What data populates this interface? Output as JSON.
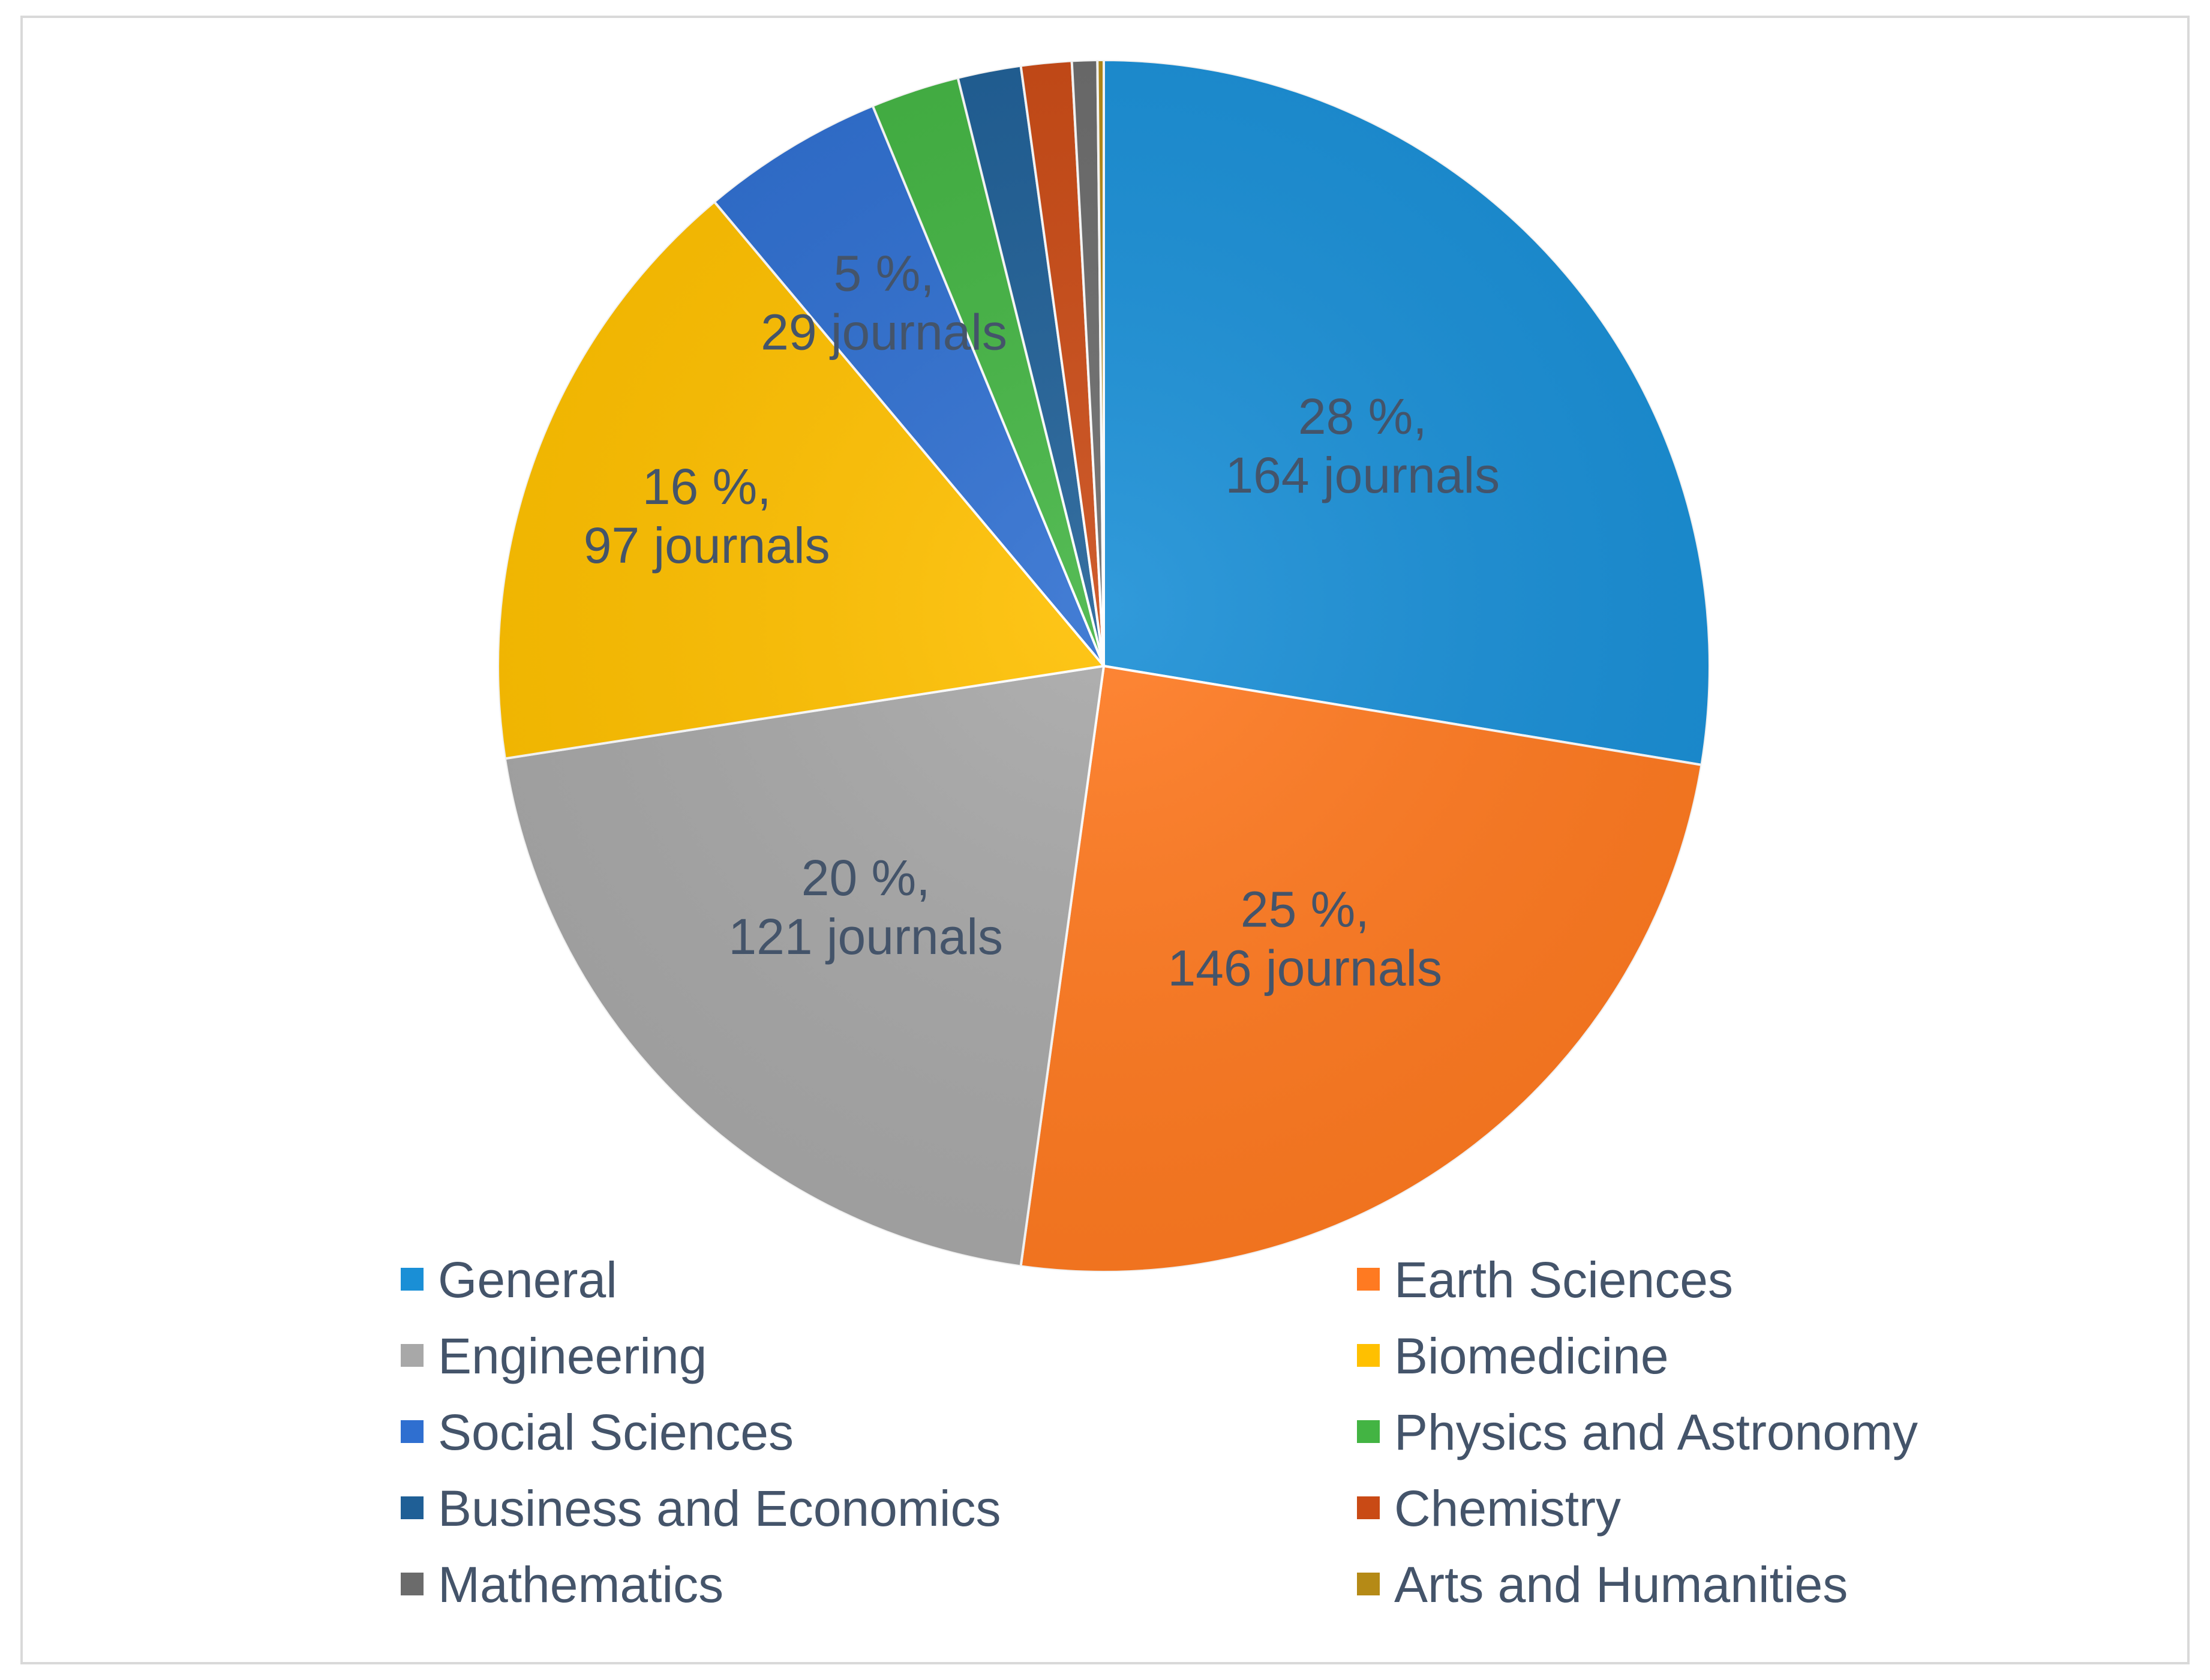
{
  "chart_data": {
    "type": "pie",
    "title": "",
    "legend_position": "bottom",
    "slices": [
      {
        "category": "General",
        "percent_label": "28 %,",
        "count_label": "164 journals",
        "value": 164,
        "color": "#1a8fd6",
        "show_label": true
      },
      {
        "category": "Earth Sciences",
        "percent_label": "25 %,",
        "count_label": "146 journals",
        "value": 146,
        "color": "#ff7a21",
        "show_label": true
      },
      {
        "category": "Engineering",
        "percent_label": "20 %,",
        "count_label": "121 journals",
        "value": 121,
        "color": "#a8a8a8",
        "show_label": true
      },
      {
        "category": "Biomedicine",
        "percent_label": "16 %,",
        "count_label": "97 journals",
        "value": 97,
        "color": "#ffc000",
        "show_label": true
      },
      {
        "category": "Social Sciences",
        "percent_label": "5 %,",
        "count_label": "29 journals",
        "value": 29,
        "color": "#2f6fd0",
        "show_label": true
      },
      {
        "category": "Physics and Astronomy",
        "percent_label": "",
        "count_label": "",
        "value": 14,
        "color": "#43b443",
        "show_label": false
      },
      {
        "category": "Business and Economics",
        "percent_label": "",
        "count_label": "",
        "value": 10,
        "color": "#1f5f96",
        "show_label": false
      },
      {
        "category": "Chemistry",
        "percent_label": "",
        "count_label": "",
        "value": 8,
        "color": "#c94a15",
        "show_label": false
      },
      {
        "category": "Mathematics",
        "percent_label": "",
        "count_label": "",
        "value": 4,
        "color": "#6b6b6b",
        "show_label": false
      },
      {
        "category": "Arts and Humanities",
        "percent_label": "",
        "count_label": "",
        "value": 1,
        "color": "#b58a16",
        "show_label": false
      }
    ]
  }
}
